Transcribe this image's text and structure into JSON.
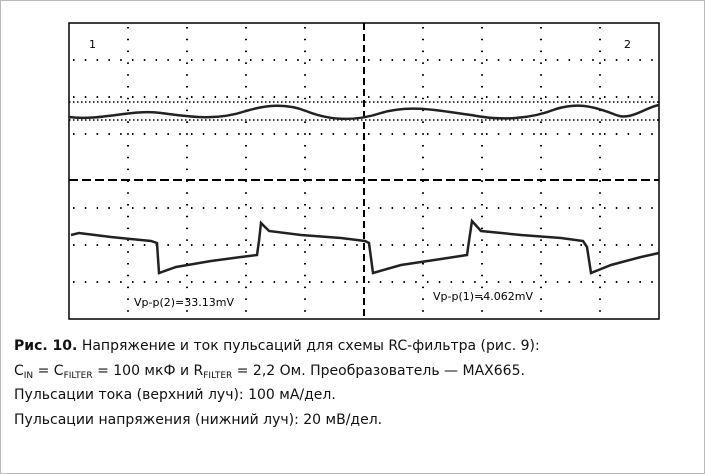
{
  "figure": {
    "channel_labels": [
      "1",
      "2"
    ],
    "measurements": [
      "Vp-p(2)=33.13mV",
      "Vp-p(1)=4.062mV"
    ]
  },
  "caption": {
    "label": "Рис. 10.",
    "title": " Напряжение и ток пульсаций для схемы RC-фильтра (рис. 9):",
    "line2": [
      "C",
      "IN",
      " = C",
      "FILTER",
      " = 100 мкФ и R",
      "FILTER",
      " = 2,2 Ом. Преобразователь — MAX665."
    ],
    "line3": "Пульсации тока (верхний луч): 100 мА/дел.",
    "line4": "Пульсации напряжения (нижний луч): 20 мВ/дел."
  }
}
